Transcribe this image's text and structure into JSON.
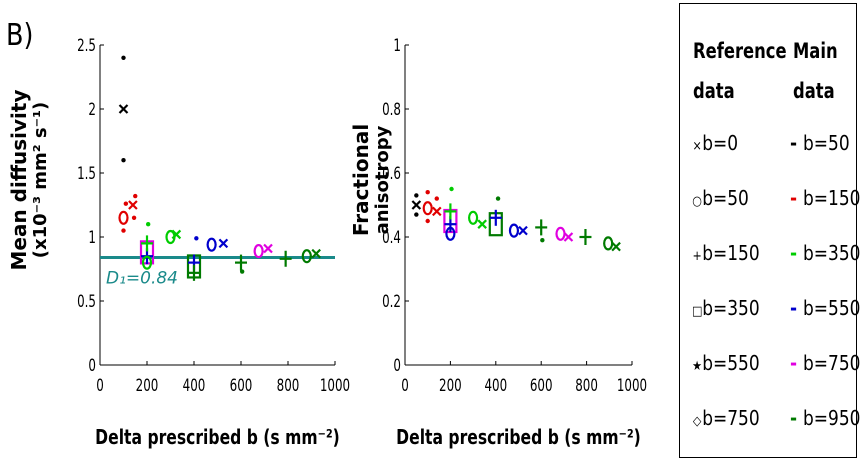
{
  "panel_label": "B)",
  "chart_data": [
    {
      "type": "scatter",
      "ylabel_line1": "Mean diffusivity",
      "ylabel_line2": "(x10⁻³ mm² s⁻¹)",
      "xlabel": "Delta prescribed b (s mm⁻²)",
      "xlim": [
        0,
        1000
      ],
      "ylim": [
        0,
        2.5
      ],
      "xticks": [
        "0",
        "200",
        "400",
        "600",
        "800",
        "1000"
      ],
      "yticks": [
        "0",
        "0.5",
        "1",
        "1.5",
        "2",
        "2.5"
      ],
      "reference_line": {
        "y": 0.84,
        "label": "D₁=0.84",
        "color": "#1a8a8a"
      },
      "points": [
        {
          "x": 100,
          "y": 2.0,
          "s": "x",
          "c": "black"
        },
        {
          "x": 100,
          "y": 2.4,
          "s": "dot",
          "c": "black"
        },
        {
          "x": 100,
          "y": 1.6,
          "s": "dot",
          "c": "black"
        },
        {
          "x": 100,
          "y": 1.15,
          "s": "o",
          "c": "red"
        },
        {
          "x": 110,
          "y": 1.26,
          "s": "dot",
          "c": "red"
        },
        {
          "x": 100,
          "y": 1.05,
          "s": "dot",
          "c": "red"
        },
        {
          "x": 140,
          "y": 1.25,
          "s": "x",
          "c": "red"
        },
        {
          "x": 145,
          "y": 1.15,
          "s": "dot",
          "c": "red"
        },
        {
          "x": 150,
          "y": 1.32,
          "s": "dot",
          "c": "red"
        },
        {
          "x": 200,
          "y": 0.88,
          "s": "sq",
          "c": "magenta"
        },
        {
          "x": 200,
          "y": 0.85,
          "s": "+",
          "c": "blue"
        },
        {
          "x": 200,
          "y": 0.95,
          "s": "+",
          "c": "green"
        },
        {
          "x": 200,
          "y": 0.8,
          "s": "o",
          "c": "green"
        },
        {
          "x": 205,
          "y": 1.1,
          "s": "dot",
          "c": "green"
        },
        {
          "x": 300,
          "y": 1.0,
          "s": "o",
          "c": "green"
        },
        {
          "x": 325,
          "y": 1.02,
          "s": "x",
          "c": "green"
        },
        {
          "x": 400,
          "y": 0.77,
          "s": "sq",
          "c": "darkgreen"
        },
        {
          "x": 400,
          "y": 0.8,
          "s": "+",
          "c": "blue"
        },
        {
          "x": 400,
          "y": 0.72,
          "s": "+",
          "c": "darkgreen"
        },
        {
          "x": 410,
          "y": 0.99,
          "s": "dot",
          "c": "blue"
        },
        {
          "x": 475,
          "y": 0.94,
          "s": "o",
          "c": "blue"
        },
        {
          "x": 525,
          "y": 0.95,
          "s": "x",
          "c": "blue"
        },
        {
          "x": 600,
          "y": 0.8,
          "s": "+",
          "c": "darkgreen"
        },
        {
          "x": 605,
          "y": 0.73,
          "s": "dot",
          "c": "darkgreen"
        },
        {
          "x": 675,
          "y": 0.89,
          "s": "o",
          "c": "magenta"
        },
        {
          "x": 715,
          "y": 0.91,
          "s": "x",
          "c": "magenta"
        },
        {
          "x": 790,
          "y": 0.83,
          "s": "+",
          "c": "darkgreen"
        },
        {
          "x": 880,
          "y": 0.85,
          "s": "o",
          "c": "darkgreen"
        },
        {
          "x": 920,
          "y": 0.87,
          "s": "x",
          "c": "darkgreen"
        }
      ]
    },
    {
      "type": "scatter",
      "ylabel_line1": "Fractional",
      "ylabel_line2": "anisotropy",
      "xlabel": "Delta prescribed b (s mm⁻²)",
      "xlim": [
        0,
        1000
      ],
      "ylim": [
        0,
        1
      ],
      "xticks": [
        "0",
        "200",
        "400",
        "600",
        "800",
        "1000"
      ],
      "yticks": [
        "0",
        "0.2",
        "0.4",
        "0.6",
        "0.8",
        "1"
      ],
      "points": [
        {
          "x": 50,
          "y": 0.5,
          "s": "x",
          "c": "black"
        },
        {
          "x": 50,
          "y": 0.53,
          "s": "dot",
          "c": "black"
        },
        {
          "x": 50,
          "y": 0.47,
          "s": "dot",
          "c": "black"
        },
        {
          "x": 100,
          "y": 0.49,
          "s": "o",
          "c": "red"
        },
        {
          "x": 100,
          "y": 0.54,
          "s": "dot",
          "c": "red"
        },
        {
          "x": 100,
          "y": 0.45,
          "s": "dot",
          "c": "red"
        },
        {
          "x": 140,
          "y": 0.48,
          "s": "x",
          "c": "red"
        },
        {
          "x": 140,
          "y": 0.52,
          "s": "dot",
          "c": "red"
        },
        {
          "x": 200,
          "y": 0.45,
          "s": "sq",
          "c": "magenta"
        },
        {
          "x": 200,
          "y": 0.44,
          "s": "+",
          "c": "blue"
        },
        {
          "x": 200,
          "y": 0.48,
          "s": "+",
          "c": "green"
        },
        {
          "x": 200,
          "y": 0.41,
          "s": "o",
          "c": "blue"
        },
        {
          "x": 205,
          "y": 0.55,
          "s": "dot",
          "c": "green"
        },
        {
          "x": 300,
          "y": 0.46,
          "s": "o",
          "c": "green"
        },
        {
          "x": 340,
          "y": 0.44,
          "s": "x",
          "c": "green"
        },
        {
          "x": 400,
          "y": 0.44,
          "s": "sq",
          "c": "darkgreen"
        },
        {
          "x": 400,
          "y": 0.46,
          "s": "+",
          "c": "blue"
        },
        {
          "x": 410,
          "y": 0.52,
          "s": "dot",
          "c": "darkgreen"
        },
        {
          "x": 480,
          "y": 0.42,
          "s": "o",
          "c": "blue"
        },
        {
          "x": 520,
          "y": 0.42,
          "s": "x",
          "c": "blue"
        },
        {
          "x": 600,
          "y": 0.43,
          "s": "+",
          "c": "darkgreen"
        },
        {
          "x": 605,
          "y": 0.39,
          "s": "dot",
          "c": "darkgreen"
        },
        {
          "x": 685,
          "y": 0.41,
          "s": "o",
          "c": "magenta"
        },
        {
          "x": 720,
          "y": 0.4,
          "s": "x",
          "c": "magenta"
        },
        {
          "x": 795,
          "y": 0.4,
          "s": "+",
          "c": "darkgreen"
        },
        {
          "x": 895,
          "y": 0.38,
          "s": "o",
          "c": "darkgreen"
        },
        {
          "x": 930,
          "y": 0.37,
          "s": "x",
          "c": "darkgreen"
        }
      ]
    }
  ],
  "legend": {
    "reference_header": [
      "Reference",
      "data"
    ],
    "main_header": [
      "Main",
      "data"
    ],
    "reference_items": [
      {
        "symbol": "×",
        "label": "b=0"
      },
      {
        "symbol": "○",
        "label": "b=50"
      },
      {
        "symbol": "+",
        "label": "b=150"
      },
      {
        "symbol": "□",
        "label": "b=350"
      },
      {
        "symbol": "★",
        "label": "b=550"
      },
      {
        "symbol": "◇",
        "label": "b=750"
      }
    ],
    "main_items": [
      {
        "color": "#000000",
        "label": "b=50"
      },
      {
        "color": "#e00000",
        "label": "b=150"
      },
      {
        "color": "#00cc00",
        "label": "b=350"
      },
      {
        "color": "#0000cc",
        "label": "b=550"
      },
      {
        "color": "#e000e0",
        "label": "b=750"
      },
      {
        "color": "#007a00",
        "label": "b=950"
      }
    ]
  },
  "colors": {
    "black": "#000000",
    "red": "#e00000",
    "green": "#00cc00",
    "blue": "#0000cc",
    "magenta": "#e000e0",
    "darkgreen": "#007a00",
    "teal": "#1a8a8a"
  }
}
